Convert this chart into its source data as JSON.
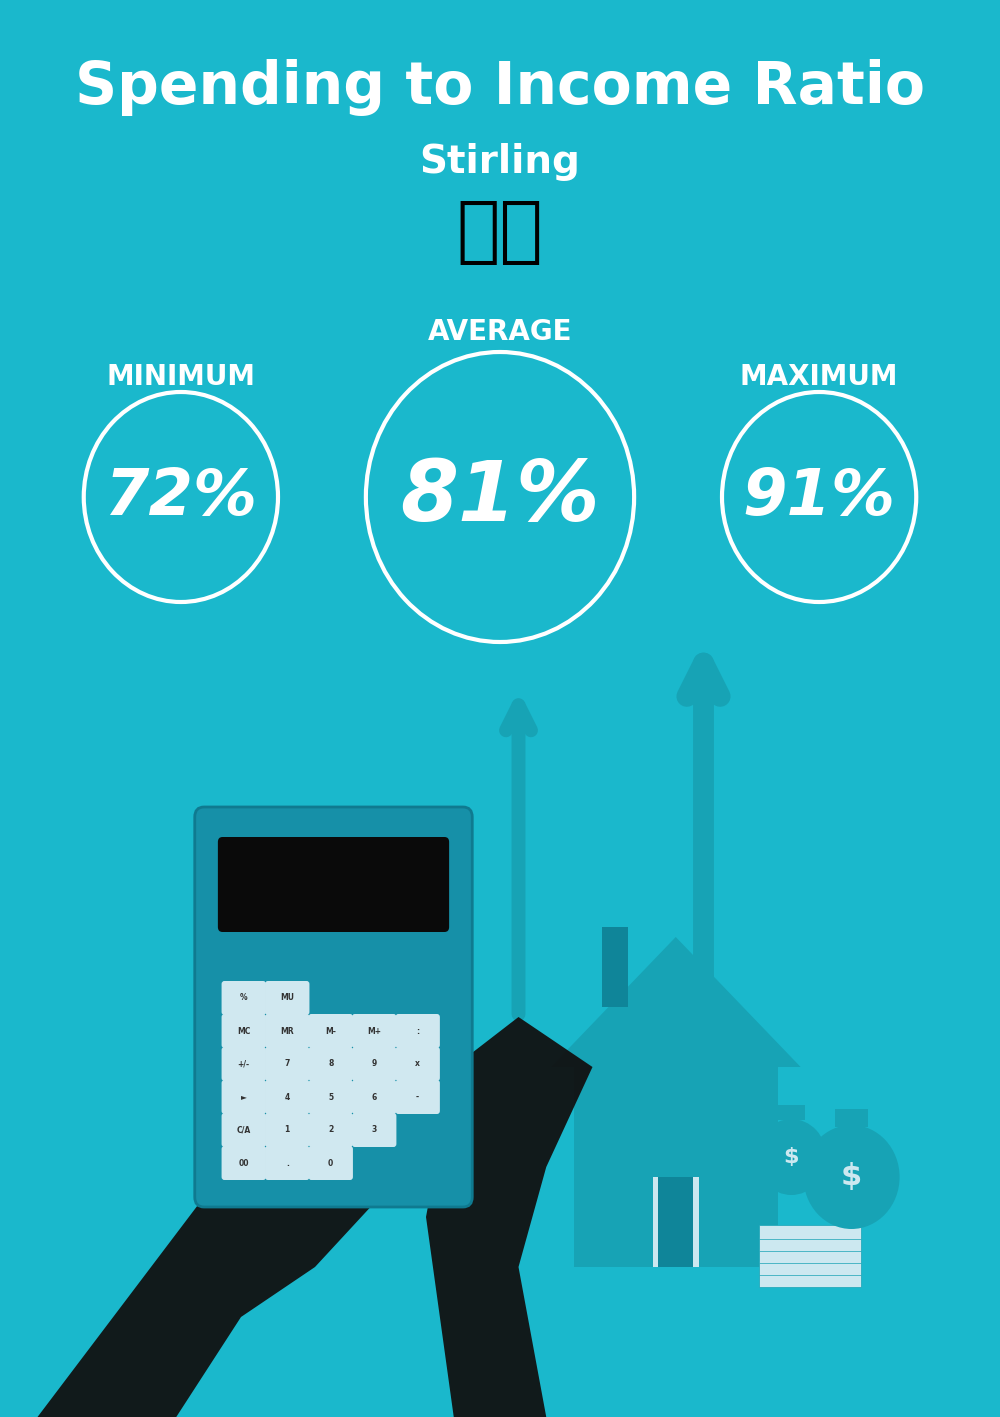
{
  "title": "Spending to Income Ratio",
  "subtitle": "Stirling",
  "bg_color": "#1ab8cc",
  "text_color": "#ffffff",
  "min_label": "MINIMUM",
  "avg_label": "AVERAGE",
  "max_label": "MAXIMUM",
  "min_value": "72%",
  "avg_value": "81%",
  "max_value": "91%",
  "title_fontsize": 42,
  "subtitle_fontsize": 28,
  "label_fontsize": 20,
  "value_fontsize_small": 46,
  "value_fontsize_large": 60,
  "circle_color": "#ffffff",
  "circle_linewidth": 3
}
